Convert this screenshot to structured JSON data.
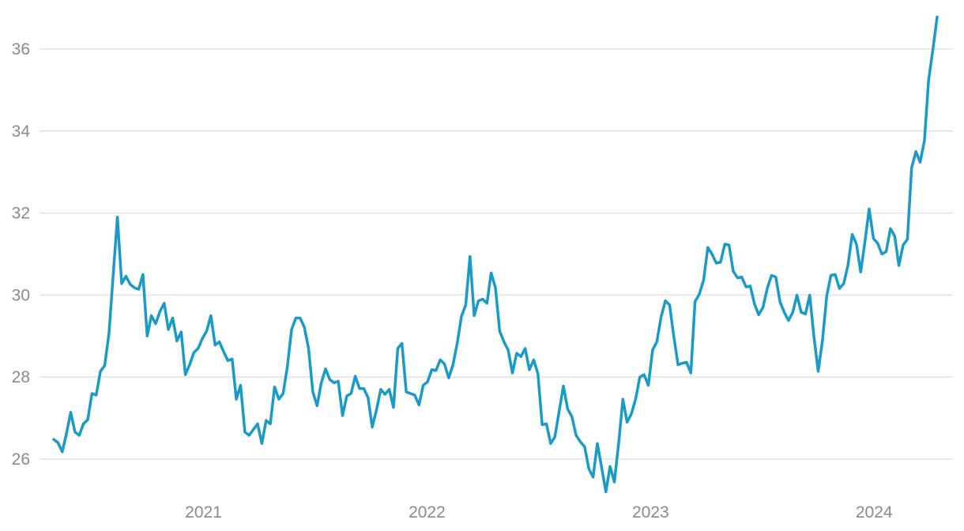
{
  "chart_data": {
    "type": "line",
    "title": "",
    "xlabel": "",
    "ylabel": "",
    "ylim": [
      25,
      37
    ],
    "yticks": [
      "26",
      "28",
      "30",
      "32",
      "34",
      "36"
    ],
    "xticks": [
      "2021",
      "2022",
      "2023",
      "2024"
    ],
    "grid": "horizontal",
    "legend": "none",
    "series": [
      {
        "color": "#1a9bc7",
        "x": [
          2020.33,
          2020.349,
          2020.368,
          2020.387,
          2020.406,
          2020.425,
          2020.444,
          2020.463,
          2020.482,
          2020.501,
          2020.52,
          2020.539,
          2020.558,
          2020.577,
          2020.596,
          2020.615,
          2020.634,
          2020.653,
          2020.672,
          2020.691,
          2020.71,
          2020.729,
          2020.748,
          2020.767,
          2020.786,
          2020.805,
          2020.824,
          2020.843,
          2020.862,
          2020.881,
          2020.9,
          2020.919,
          2020.938,
          2020.957,
          2020.976,
          2020.995,
          2021.014,
          2021.033,
          2021.052,
          2021.071,
          2021.09,
          2021.109,
          2021.128,
          2021.147,
          2021.166,
          2021.185,
          2021.204,
          2021.223,
          2021.242,
          2021.261,
          2021.28,
          2021.299,
          2021.318,
          2021.337,
          2021.356,
          2021.375,
          2021.394,
          2021.413,
          2021.432,
          2021.451,
          2021.47,
          2021.489,
          2021.508,
          2021.527,
          2021.546,
          2021.565,
          2021.584,
          2021.603,
          2021.622,
          2021.641,
          2021.66,
          2021.679,
          2021.698,
          2021.717,
          2021.736,
          2021.755,
          2021.774,
          2021.793,
          2021.812,
          2021.831,
          2021.85,
          2021.869,
          2021.888,
          2021.907,
          2021.926,
          2021.945,
          2021.964,
          2021.983,
          2022.002,
          2022.021,
          2022.04,
          2022.059,
          2022.078,
          2022.097,
          2022.116,
          2022.135,
          2022.154,
          2022.173,
          2022.192,
          2022.211,
          2022.23,
          2022.249,
          2022.268,
          2022.287,
          2022.306,
          2022.325,
          2022.344,
          2022.363,
          2022.382,
          2022.401,
          2022.42,
          2022.439,
          2022.458,
          2022.477,
          2022.496,
          2022.515,
          2022.534,
          2022.553,
          2022.572,
          2022.591,
          2022.61,
          2022.629,
          2022.648,
          2022.667,
          2022.686,
          2022.705,
          2022.724,
          2022.743,
          2022.762,
          2022.781,
          2022.8,
          2022.819,
          2022.838,
          2022.857,
          2022.876,
          2022.895,
          2022.914,
          2022.933,
          2022.952,
          2022.971,
          2022.99,
          2023.009,
          2023.028,
          2023.047,
          2023.066,
          2023.085,
          2023.104,
          2023.123,
          2023.142,
          2023.161,
          2023.18,
          2023.199,
          2023.218,
          2023.237,
          2023.256,
          2023.275,
          2023.294,
          2023.313,
          2023.332,
          2023.351,
          2023.37,
          2023.389,
          2023.408,
          2023.427,
          2023.446,
          2023.465,
          2023.484,
          2023.503,
          2023.522,
          2023.541,
          2023.56,
          2023.579,
          2023.598,
          2023.617,
          2023.636,
          2023.655,
          2023.674,
          2023.693,
          2023.712,
          2023.731,
          2023.75,
          2023.769,
          2023.788,
          2023.807,
          2023.826,
          2023.845,
          2023.864,
          2023.883,
          2023.902,
          2023.921,
          2023.94,
          2023.959,
          2023.978,
          2023.997,
          2024.016,
          2024.035,
          2024.054,
          2024.073,
          2024.092,
          2024.111,
          2024.13,
          2024.149,
          2024.168,
          2024.187,
          2024.206,
          2024.225,
          2024.244,
          2024.263,
          2024.282
        ],
        "values": [
          26.48,
          26.4,
          26.18,
          26.62,
          27.14,
          26.66,
          26.58,
          26.86,
          26.96,
          27.6,
          27.56,
          28.14,
          28.28,
          29.06,
          30.5,
          31.9,
          30.28,
          30.46,
          30.26,
          30.18,
          30.14,
          30.5,
          29.0,
          29.5,
          29.3,
          29.6,
          29.8,
          29.16,
          29.44,
          28.88,
          29.1,
          28.06,
          28.3,
          28.6,
          28.7,
          28.94,
          29.12,
          29.5,
          28.78,
          28.86,
          28.62,
          28.4,
          28.44,
          27.46,
          27.8,
          26.66,
          26.58,
          26.72,
          26.86,
          26.38,
          26.94,
          26.86,
          27.76,
          27.46,
          27.6,
          28.24,
          29.16,
          29.44,
          29.44,
          29.22,
          28.7,
          27.64,
          27.3,
          27.86,
          28.2,
          27.94,
          27.86,
          27.9,
          27.06,
          27.54,
          27.6,
          28.02,
          27.72,
          27.72,
          27.5,
          26.78,
          27.2,
          27.7,
          27.58,
          27.7,
          27.26,
          28.7,
          28.82,
          27.64,
          27.6,
          27.56,
          27.32,
          27.8,
          27.88,
          28.18,
          28.16,
          28.42,
          28.32,
          27.98,
          28.3,
          28.82,
          29.48,
          29.76,
          30.94,
          29.5,
          29.86,
          29.9,
          29.8,
          30.54,
          30.18,
          29.12,
          28.86,
          28.66,
          28.1,
          28.58,
          28.5,
          28.7,
          28.18,
          28.42,
          28.08,
          26.84,
          26.86,
          26.38,
          26.54,
          27.16,
          27.78,
          27.22,
          27.04,
          26.58,
          26.42,
          26.3,
          25.76,
          25.56,
          26.38,
          25.8,
          25.2,
          25.82,
          25.44,
          26.38,
          27.46,
          26.9,
          27.1,
          27.46,
          28.0,
          28.06,
          27.8,
          28.66,
          28.86,
          29.46,
          29.86,
          29.76,
          28.98,
          28.3,
          28.34,
          28.36,
          28.1,
          29.84,
          30.02,
          30.36,
          31.16,
          31.0,
          30.78,
          30.8,
          31.24,
          31.22,
          30.58,
          30.42,
          30.44,
          30.2,
          30.22,
          29.78,
          29.52,
          29.7,
          30.16,
          30.48,
          30.44,
          29.84,
          29.58,
          29.38,
          29.58,
          30.0,
          29.58,
          29.54,
          30.0,
          28.98,
          28.14,
          28.9,
          29.98,
          30.48,
          30.5,
          30.16,
          30.28,
          30.72,
          31.48,
          31.24,
          30.56,
          31.3,
          32.1,
          31.38,
          31.26,
          31.0,
          31.06,
          31.62,
          31.44,
          30.72,
          31.22,
          31.36,
          33.1,
          33.5,
          33.24,
          33.76,
          35.24,
          35.98,
          36.78
        ]
      }
    ]
  }
}
